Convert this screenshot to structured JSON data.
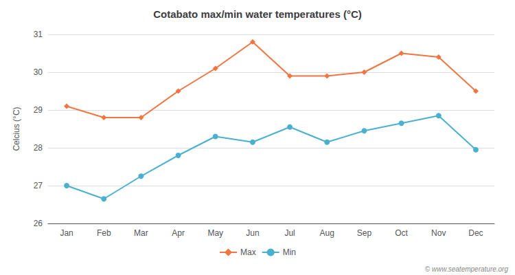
{
  "chart_data": {
    "type": "line",
    "title": "Cotabato max/min water temperatures (°C)",
    "y_label": "Celcius (°C)",
    "categories": [
      "Jan",
      "Feb",
      "Mar",
      "Apr",
      "May",
      "Jun",
      "Jul",
      "Aug",
      "Sep",
      "Oct",
      "Nov",
      "Dec"
    ],
    "series": [
      {
        "name": "Max",
        "color": "#f07540",
        "marker": "diamond",
        "values": [
          29.1,
          28.8,
          28.8,
          29.5,
          30.1,
          30.8,
          29.9,
          29.9,
          30.0,
          30.5,
          30.4,
          29.5
        ]
      },
      {
        "name": "Min",
        "color": "#4ab0d0",
        "marker": "circle",
        "values": [
          27.0,
          26.65,
          27.25,
          27.8,
          28.3,
          28.15,
          28.55,
          28.15,
          28.45,
          28.65,
          28.85,
          27.95
        ]
      }
    ],
    "ylim": [
      26,
      31
    ],
    "yticks": [
      26,
      27,
      28,
      29,
      30,
      31
    ],
    "grid": true,
    "legend": "bottom",
    "annotation": "© www.seatemperature.org"
  }
}
